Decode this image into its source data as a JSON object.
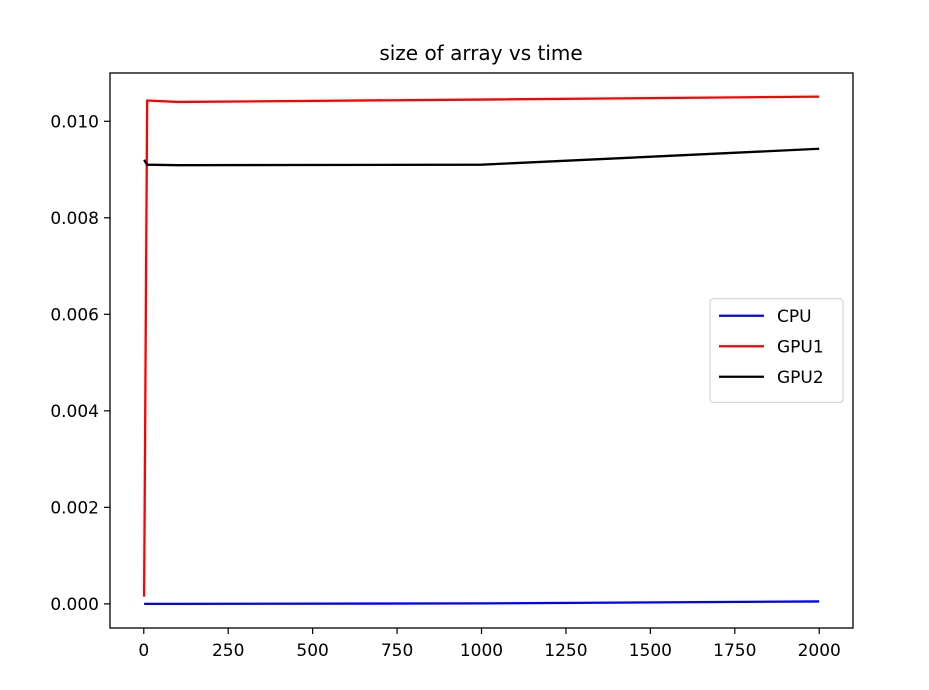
{
  "chart_data": {
    "type": "line",
    "title": "size of array vs time",
    "xlabel": "",
    "ylabel": "",
    "xlim": [
      -100,
      2100
    ],
    "ylim": [
      -0.0005,
      0.011
    ],
    "xticks": [
      0,
      250,
      500,
      750,
      1000,
      1250,
      1500,
      1750,
      2000
    ],
    "xtick_labels": [
      "0",
      "250",
      "500",
      "750",
      "1000",
      "1250",
      "1500",
      "1750",
      "2000"
    ],
    "yticks": [
      0.0,
      0.002,
      0.004,
      0.006,
      0.008,
      0.01
    ],
    "ytick_labels": [
      "0.000",
      "0.002",
      "0.004",
      "0.006",
      "0.008",
      "0.010"
    ],
    "grid": false,
    "legend_position": "center-right",
    "series": [
      {
        "name": "CPU",
        "color": "#0000ff",
        "x": [
          1,
          10,
          100,
          1000,
          2000
        ],
        "y": [
          0.0,
          0.0,
          0.0,
          1e-05,
          5e-05
        ]
      },
      {
        "name": "GPU1",
        "color": "#ff0000",
        "x": [
          1,
          10,
          100,
          1000,
          2000
        ],
        "y": [
          0.00015,
          0.01043,
          0.0104,
          0.01045,
          0.01051
        ]
      },
      {
        "name": "GPU2",
        "color": "#000000",
        "x": [
          1,
          10,
          100,
          1000,
          2000
        ],
        "y": [
          0.0092,
          0.0091,
          0.00909,
          0.0091,
          0.00943
        ]
      }
    ]
  }
}
